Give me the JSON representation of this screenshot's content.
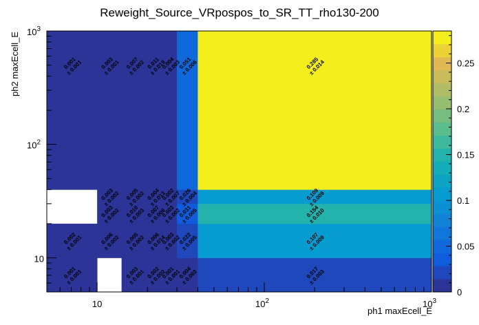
{
  "chart_data": {
    "type": "heatmap",
    "title": "Reweight_Source_VRpospos_to_SR_TT_rho130-200",
    "xlabel": "ph1 maxEcell_E",
    "ylabel": "ph2 maxEcell_E",
    "x_scale": "log",
    "y_scale": "log",
    "xlim": [
      5,
      1000
    ],
    "ylim": [
      5,
      1000
    ],
    "x_edges": [
      5,
      10,
      14,
      20,
      25,
      30,
      40,
      1000
    ],
    "y_edges": [
      5,
      10,
      20,
      30,
      40,
      1000
    ],
    "x_ticks": [
      {
        "value": 10,
        "label": "10"
      },
      {
        "value": 100,
        "label": "10",
        "exp": "2"
      },
      {
        "value": 1000,
        "label": "10",
        "exp": "3"
      }
    ],
    "y_ticks": [
      {
        "value": 10,
        "label": "10"
      },
      {
        "value": 100,
        "label": "10",
        "exp": "2"
      },
      {
        "value": 1000,
        "label": "10",
        "exp": "3"
      }
    ],
    "colorbar": {
      "range": [
        0,
        0.285
      ],
      "ticks": [
        "0",
        "0.05",
        "0.1",
        "0.15",
        "0.2",
        "0.25"
      ],
      "tick_values": [
        0,
        0.05,
        0.1,
        0.15,
        0.2,
        0.25
      ]
    },
    "cells": [
      {
        "x": [
          5,
          10
        ],
        "y": [
          5,
          10
        ],
        "value": 0.001,
        "error": 0.001
      },
      {
        "x": [
          14,
          20
        ],
        "y": [
          5,
          10
        ],
        "value": 0.003,
        "error": 0.001
      },
      {
        "x": [
          20,
          25
        ],
        "y": [
          5,
          10
        ],
        "value": 0.002,
        "error": 0.002
      },
      {
        "x": [
          25,
          30
        ],
        "y": [
          5,
          10
        ],
        "value": 0.001,
        "error": 0.001
      },
      {
        "x": [
          30,
          40
        ],
        "y": [
          5,
          10
        ],
        "value": 0.004,
        "error": 0.002
      },
      {
        "x": [
          40,
          1000
        ],
        "y": [
          5,
          10
        ],
        "value": 0.017,
        "error": 0.003
      },
      {
        "x": [
          5,
          10
        ],
        "y": [
          10,
          20
        ],
        "value": 0.002,
        "error": 0.001
      },
      {
        "x": [
          10,
          14
        ],
        "y": [
          10,
          20
        ],
        "value": 0.006,
        "error": 0.002
      },
      {
        "x": [
          14,
          20
        ],
        "y": [
          10,
          20
        ],
        "value": 0.005,
        "error": 0.002
      },
      {
        "x": [
          20,
          25
        ],
        "y": [
          10,
          20
        ],
        "value": 0.006,
        "error": 0.014
      },
      {
        "x": [
          25,
          30
        ],
        "y": [
          10,
          20
        ],
        "value": 0.003,
        "error": 0.002
      },
      {
        "x": [
          30,
          40
        ],
        "y": [
          10,
          20
        ],
        "value": 0.022,
        "error": 0.005
      },
      {
        "x": [
          40,
          1000
        ],
        "y": [
          10,
          20
        ],
        "value": 0.107,
        "error": 0.009
      },
      {
        "x": [
          10,
          14
        ],
        "y": [
          20,
          30
        ],
        "value": 0.003,
        "error": 0.002
      },
      {
        "x": [
          14,
          20
        ],
        "y": [
          20,
          30
        ],
        "value": 0.01,
        "error": 0.003
      },
      {
        "x": [
          20,
          25
        ],
        "y": [
          20,
          30
        ],
        "value": 0.007,
        "error": 0.006
      },
      {
        "x": [
          25,
          30
        ],
        "y": [
          20,
          30
        ],
        "value": 0.003,
        "error": 0.002
      },
      {
        "x": [
          30,
          40
        ],
        "y": [
          20,
          30
        ],
        "value": 0.031,
        "error": 0.005
      },
      {
        "x": [
          40,
          1000
        ],
        "y": [
          20,
          30
        ],
        "value": 0.154,
        "error": 0.01
      },
      {
        "x": [
          10,
          14
        ],
        "y": [
          30,
          40
        ],
        "value": 0.003,
        "error": 0.002
      },
      {
        "x": [
          14,
          20
        ],
        "y": [
          30,
          40
        ],
        "value": 0.005,
        "error": 0.002
      },
      {
        "x": [
          20,
          25
        ],
        "y": [
          30,
          40
        ],
        "value": 0.004,
        "error": 0.013
      },
      {
        "x": [
          25,
          30
        ],
        "y": [
          30,
          40
        ],
        "value": 0.002,
        "error": 0.007
      },
      {
        "x": [
          30,
          40
        ],
        "y": [
          30,
          40
        ],
        "value": 0.026,
        "error": 0.004
      },
      {
        "x": [
          40,
          1000
        ],
        "y": [
          30,
          40
        ],
        "value": 0.109,
        "error": 0.009
      },
      {
        "x": [
          5,
          10
        ],
        "y": [
          40,
          1000
        ],
        "value": 0.001,
        "error": 0.001
      },
      {
        "x": [
          10,
          14
        ],
        "y": [
          40,
          1000
        ],
        "value": 0.003,
        "error": 0.001
      },
      {
        "x": [
          14,
          20
        ],
        "y": [
          40,
          1000
        ],
        "value": 0.007,
        "error": 0.002
      },
      {
        "x": [
          20,
          25
        ],
        "y": [
          40,
          1000
        ],
        "value": 0.011,
        "error": 0.019
      },
      {
        "x": [
          25,
          30
        ],
        "y": [
          40,
          1000
        ],
        "value": 0.004,
        "error": 0.003
      },
      {
        "x": [
          30,
          40
        ],
        "y": [
          40,
          1000
        ],
        "value": 0.051,
        "error": 0.006
      },
      {
        "x": [
          40,
          1000
        ],
        "y": [
          40,
          1000
        ],
        "value": 0.285,
        "error": 0.014
      }
    ]
  }
}
